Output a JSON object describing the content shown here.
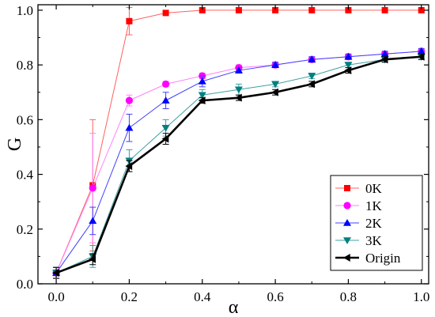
{
  "chart_data": {
    "type": "line",
    "xlabel": "α",
    "ylabel": "G",
    "xlim": [
      -0.05,
      1.02
    ],
    "ylim": [
      0.0,
      1.02
    ],
    "x_ticks": [
      "0.0",
      "0.2",
      "0.4",
      "0.6",
      "0.8",
      "1.0"
    ],
    "y_ticks": [
      "0.0",
      "0.2",
      "0.4",
      "0.6",
      "0.8",
      "1.0"
    ],
    "legend_position": "bottom-right",
    "grid": false,
    "x": [
      0.0,
      0.1,
      0.2,
      0.3,
      0.4,
      0.5,
      0.6,
      0.7,
      0.8,
      0.9,
      1.0
    ],
    "series": [
      {
        "name": "0K",
        "color": "#ff0000",
        "line_color": "#ff6060",
        "marker": "square",
        "values": [
          0.04,
          0.36,
          0.96,
          0.99,
          1.0,
          1.0,
          1.0,
          1.0,
          1.0,
          1.0,
          1.0
        ],
        "errors": [
          0.02,
          0.24,
          0.05,
          0.005,
          0.0,
          0.0,
          0.0,
          0.0,
          0.0,
          0.0,
          0.0
        ]
      },
      {
        "name": "1K",
        "color": "#ff00ff",
        "line_color": "#ff80ff",
        "marker": "circle",
        "values": [
          0.04,
          0.35,
          0.67,
          0.73,
          0.76,
          0.79,
          0.8,
          0.82,
          0.83,
          0.84,
          0.85
        ],
        "errors": [
          0.02,
          0.2,
          0.02,
          0.01,
          0.01,
          0.01,
          0.01,
          0.01,
          0.01,
          0.01,
          0.01
        ]
      },
      {
        "name": "2K",
        "color": "#0000ff",
        "line_color": "#4040ff",
        "marker": "triangle-up",
        "values": [
          0.04,
          0.23,
          0.57,
          0.67,
          0.74,
          0.78,
          0.8,
          0.82,
          0.83,
          0.84,
          0.85
        ],
        "errors": [
          0.02,
          0.05,
          0.05,
          0.03,
          0.02,
          0.01,
          0.01,
          0.01,
          0.01,
          0.01,
          0.01
        ]
      },
      {
        "name": "3K",
        "color": "#008080",
        "line_color": "#40a0a0",
        "marker": "triangle-down",
        "values": [
          0.04,
          0.1,
          0.45,
          0.57,
          0.69,
          0.71,
          0.73,
          0.76,
          0.8,
          0.82,
          0.83
        ],
        "errors": [
          0.02,
          0.04,
          0.04,
          0.03,
          0.02,
          0.02,
          0.01,
          0.01,
          0.01,
          0.01,
          0.01
        ]
      },
      {
        "name": "Origin",
        "color": "#000000",
        "line_color": "#000000",
        "marker": "triangle-left",
        "values": [
          0.04,
          0.09,
          0.43,
          0.53,
          0.67,
          0.68,
          0.7,
          0.73,
          0.78,
          0.82,
          0.83
        ],
        "errors": [
          0.02,
          0.02,
          0.02,
          0.02,
          0.01,
          0.01,
          0.01,
          0.01,
          0.01,
          0.01,
          0.01
        ]
      }
    ]
  }
}
